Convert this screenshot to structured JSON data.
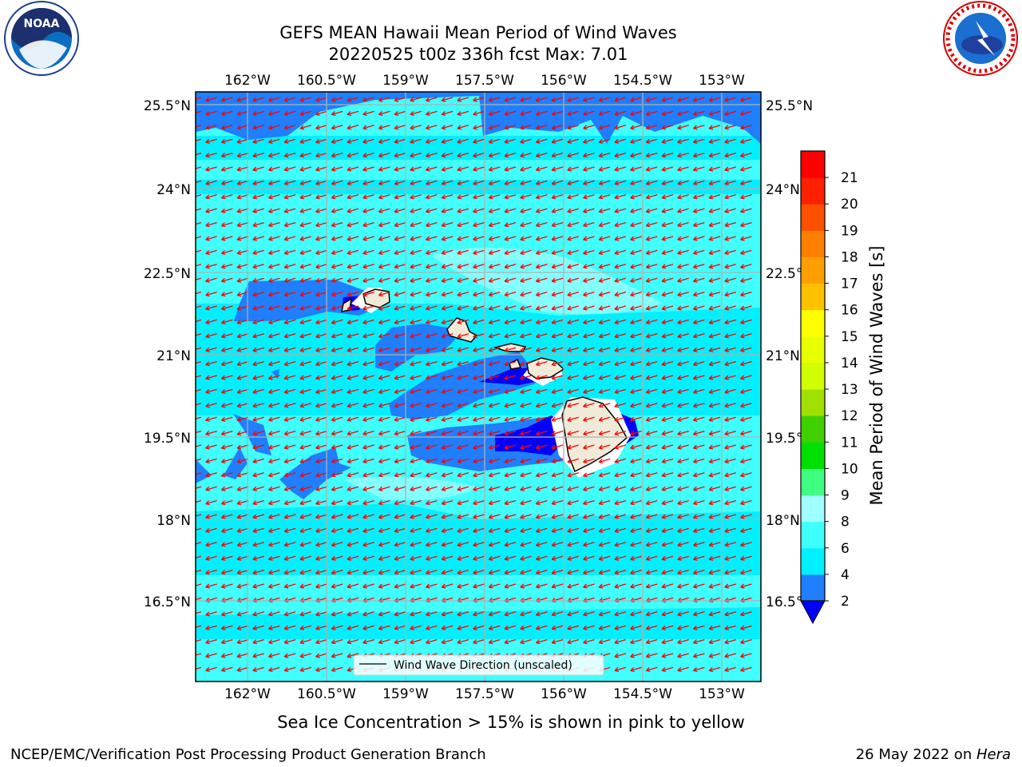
{
  "title": {
    "line1": "GEFS MEAN Hawaii Mean Period of Wind Waves",
    "line2": "20220525 t00z 336h fcst   Max: 7.01"
  },
  "axes": {
    "lon_ticks": [
      "162°W",
      "160.5°W",
      "159°W",
      "157.5°W",
      "156°W",
      "154.5°W",
      "153°W"
    ],
    "lat_ticks_left": [
      "25.5°N",
      "24°N",
      "22.5°N",
      "21°N",
      "19.5°N",
      "18°N",
      "16.5°N"
    ],
    "lat_ticks_right": [
      "25.5°N",
      "24°N",
      "22.5°N",
      "21°N",
      "19.5°N",
      "18°N",
      "16.5°N"
    ]
  },
  "colorbar": {
    "label": "Mean Period of Wind Waves [s]",
    "tick_labels": [
      "2",
      "4",
      "6",
      "8",
      "9",
      "10",
      "11",
      "12",
      "13",
      "14",
      "15",
      "16",
      "17",
      "18",
      "19",
      "20",
      "21"
    ],
    "colors": [
      "#1f7fff",
      "#00f0ff",
      "#40ffff",
      "#a0ffff",
      "#40ff80",
      "#00e000",
      "#40d000",
      "#a0e000",
      "#d0ff00",
      "#e8ff00",
      "#ffff00",
      "#ffc000",
      "#ffa000",
      "#ff8000",
      "#ff5000",
      "#ff2000",
      "#ff0000"
    ],
    "extend_color": "#0000ff"
  },
  "legend": {
    "label": "Wind Wave Direction (unscaled)"
  },
  "note": "Sea Ice Concentration > 15% is shown in pink to yellow",
  "footer": {
    "left": "NCEP/EMC/Verification Post Processing Product Generation Branch",
    "right_date": "26 May 2022 on ",
    "right_machine": "Hera"
  },
  "logos": {
    "noaa_text": "NOAA",
    "nws_text": "NATIONAL WEATHER SERVICE"
  },
  "map_data": {
    "field": "Mean Period of Wind Waves",
    "units": "s",
    "max": 7.01,
    "arrow_direction": "toward west-southwest",
    "arrow_color": "#ff0000",
    "land_color": "#f0ead8",
    "background_level_color": "#40ffff"
  }
}
